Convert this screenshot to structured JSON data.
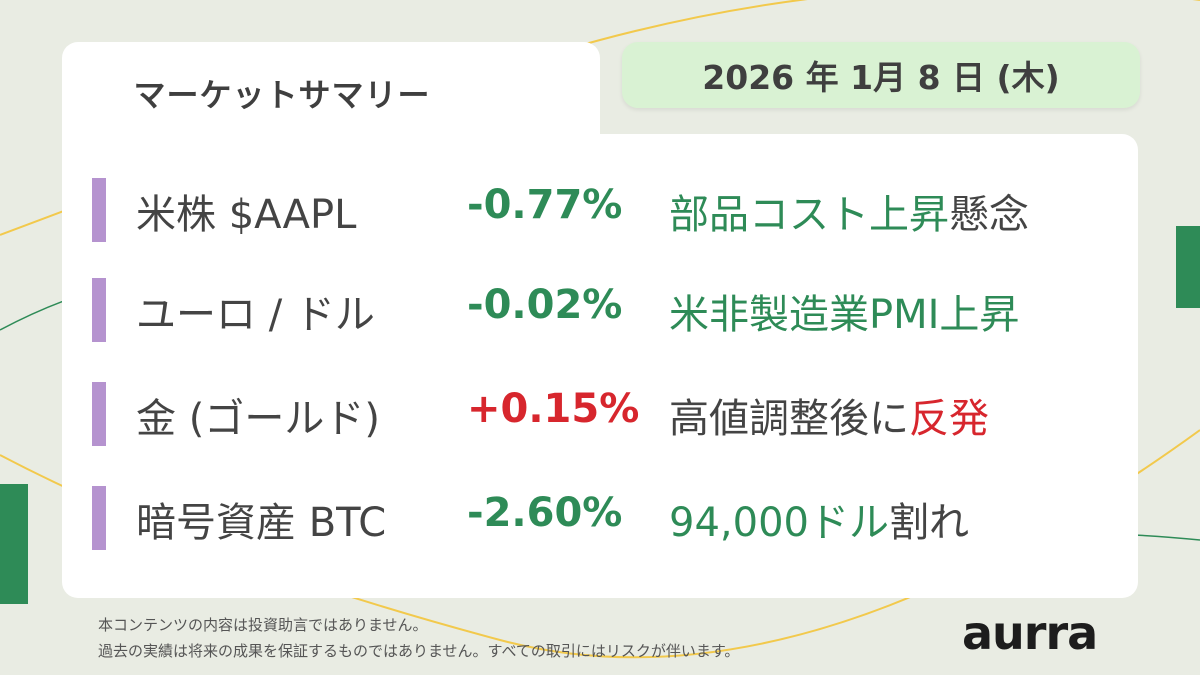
{
  "header": {
    "title": "マーケットサマリー",
    "date": "2026 年 1月 8 日 (木)"
  },
  "rows": [
    {
      "label": "米株 $AAPL",
      "change": "-0.77%",
      "note_a": "部品コスト上昇",
      "note_b": "懸念"
    },
    {
      "label": "ユーロ / ドル",
      "change": "-0.02%",
      "note_a": "米非製造業PMI上昇",
      "note_b": ""
    },
    {
      "label": "金 (ゴールド)",
      "change": "+0.15%",
      "note_a": "高値調整後に",
      "note_b": "反発"
    },
    {
      "label": "暗号資産 BTC",
      "change": "-2.60%",
      "note_a": "94,000ドル",
      "note_b": "割れ"
    }
  ],
  "disclaimer": {
    "line1": "本コンテンツの内容は投資助言ではありません。",
    "line2": "過去の実績は将来の成果を保証するものではありません。すべての取引にはリスクが伴います。"
  },
  "brand": {
    "logo": "aurra"
  },
  "colors": {
    "negative": "#2e8b57",
    "positive": "#d7262d",
    "neutral": "#444444",
    "accent_bar": "#b593cf",
    "date_bg": "#d9f2d3"
  }
}
